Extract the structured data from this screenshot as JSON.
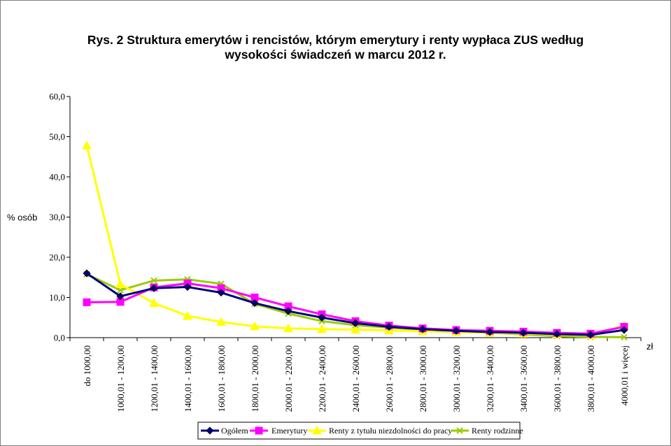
{
  "chart_data": {
    "type": "line",
    "title": "Rys. 2 Struktura emerytów i rencistów, którym emerytury i renty wypłaca ZUS według wysokości świadczeń w marcu 2012 r.",
    "title_lines": [
      "Rys. 2 Struktura emerytów i rencistów, którym emerytury i renty wypłaca ZUS według",
      "wysokości świadczeń w marcu 2012 r."
    ],
    "ylabel": "% osób",
    "xlabel": "zł",
    "ylim": [
      0,
      60
    ],
    "yticks": [
      "0,0",
      "10,0",
      "20,0",
      "30,0",
      "40,0",
      "50,0",
      "60,0"
    ],
    "grid": false,
    "legend_position": "bottom",
    "categories": [
      "do 1000,00",
      "1000,01 - 1200,00",
      "1200,01 - 1400,00",
      "1400,01 - 1600,00",
      "1600,01 - 1800,00",
      "1800,01 - 2000,00",
      "2000,01 - 2200,00",
      "2200,01 - 2400,00",
      "2400,01 - 2600,00",
      "2600,01 - 2800,00",
      "2800,01 - 3000,00",
      "3000,01 - 3200,00",
      "3200,01 - 3400,00",
      "3400,01 - 3600,00",
      "3600,01 - 3800,00",
      "3800,01 - 4000,00",
      "4000,01 i więcej"
    ],
    "series": [
      {
        "name": "Ogółem",
        "color": "#000080",
        "marker": "diamond",
        "values": [
          16.0,
          10.3,
          12.3,
          12.6,
          11.2,
          8.6,
          6.6,
          5.0,
          3.6,
          2.7,
          2.1,
          1.7,
          1.4,
          1.2,
          0.9,
          0.7,
          1.9
        ]
      },
      {
        "name": "Emerytury",
        "color": "#ff00ff",
        "marker": "square",
        "values": [
          8.8,
          8.9,
          12.5,
          13.5,
          12.3,
          10.0,
          7.8,
          5.8,
          4.1,
          3.0,
          2.3,
          1.9,
          1.7,
          1.5,
          1.2,
          1.0,
          2.7
        ]
      },
      {
        "name": "Renty z tytułu niezdolności do pracy",
        "color": "#ffff00",
        "marker": "triangle",
        "values": [
          47.8,
          13.3,
          8.6,
          5.4,
          3.9,
          2.8,
          2.3,
          2.1,
          2.0,
          1.8,
          1.6,
          1.4,
          1.2,
          1.0,
          0.8,
          0.6,
          3.0
        ]
      },
      {
        "name": "Renty rodzinne",
        "color": "#99cc00",
        "marker": "x",
        "values": [
          15.8,
          11.8,
          14.2,
          14.5,
          13.4,
          8.4,
          6.0,
          4.1,
          3.1,
          2.5,
          2.0,
          1.5,
          1.2,
          0.8,
          0.4,
          0.2,
          0.1
        ]
      }
    ]
  }
}
